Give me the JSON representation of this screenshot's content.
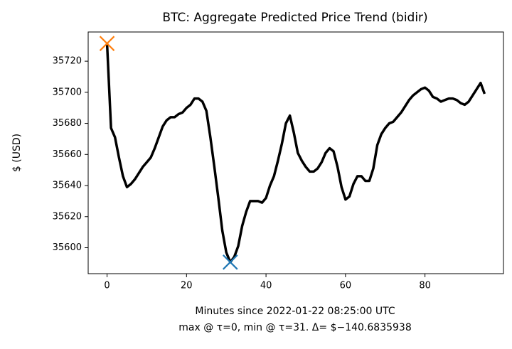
{
  "chart_data": {
    "type": "line",
    "title": "BTC: Aggregate Predicted Price Trend (bidir)",
    "xlabel": [
      "Minutes since 2022-01-22 08:25:00 UTC",
      "max @ τ=0, min @ τ=31. Δ= $−140.6835938"
    ],
    "ylabel": "$ (USD)",
    "x": [
      0,
      1,
      2,
      3,
      4,
      5,
      6,
      7,
      8,
      9,
      10,
      11,
      12,
      13,
      14,
      15,
      16,
      17,
      18,
      19,
      20,
      21,
      22,
      23,
      24,
      25,
      26,
      27,
      28,
      29,
      30,
      31,
      32,
      33,
      34,
      35,
      36,
      37,
      38,
      39,
      40,
      41,
      42,
      43,
      44,
      45,
      46,
      47,
      48,
      49,
      50,
      51,
      52,
      53,
      54,
      55,
      56,
      57,
      58,
      59,
      60,
      61,
      62,
      63,
      64,
      65,
      66,
      67,
      68,
      69,
      70,
      71,
      72,
      73,
      74,
      75,
      76,
      77,
      78,
      79,
      80,
      81,
      82,
      83,
      84,
      85,
      86,
      87,
      88,
      89,
      90,
      91,
      92,
      93,
      94,
      95
    ],
    "series": [
      {
        "name": "trend",
        "color": "#000000",
        "values": [
          35731.4,
          35677,
          35671,
          35658,
          35646,
          35639,
          35641,
          35644,
          35648,
          35652,
          35655,
          35658,
          35664,
          35671,
          35678,
          35682,
          35684,
          35684,
          35686,
          35687,
          35690,
          35692,
          35696,
          35696,
          35694,
          35688,
          35671,
          35652,
          35632,
          35611,
          35597,
          35590.7,
          35594,
          35601,
          35614,
          35623,
          35630,
          35630,
          35630,
          35629,
          35632,
          35640,
          35646,
          35656,
          35667,
          35680,
          35685,
          35674,
          35661,
          35656,
          35652,
          35649,
          35649,
          35651,
          35655,
          35661,
          35664,
          35662,
          35652,
          35639,
          35631,
          35633,
          35641,
          35646,
          35646,
          35643,
          35643,
          35651,
          35666,
          35673,
          35677,
          35680,
          35681,
          35684,
          35687,
          35691,
          35695,
          35698,
          35700,
          35702,
          35703,
          35701,
          35697,
          35696,
          35694,
          35695,
          35696,
          35696,
          35695,
          35693,
          35692,
          35694,
          35698,
          35702,
          35706,
          35699
        ]
      }
    ],
    "markers": [
      {
        "x": 0,
        "y": 35731.4,
        "color": "#ff7f0e"
      },
      {
        "x": 31,
        "y": 35590.7,
        "color": "#1f77b4"
      }
    ],
    "xlim": [
      -4.75,
      99.75
    ],
    "xticks": [
      0,
      20,
      40,
      60,
      80
    ],
    "ylim": [
      35583.3,
      35738.8
    ],
    "yticks": [
      35600,
      35620,
      35640,
      35660,
      35680,
      35700,
      35720
    ]
  }
}
